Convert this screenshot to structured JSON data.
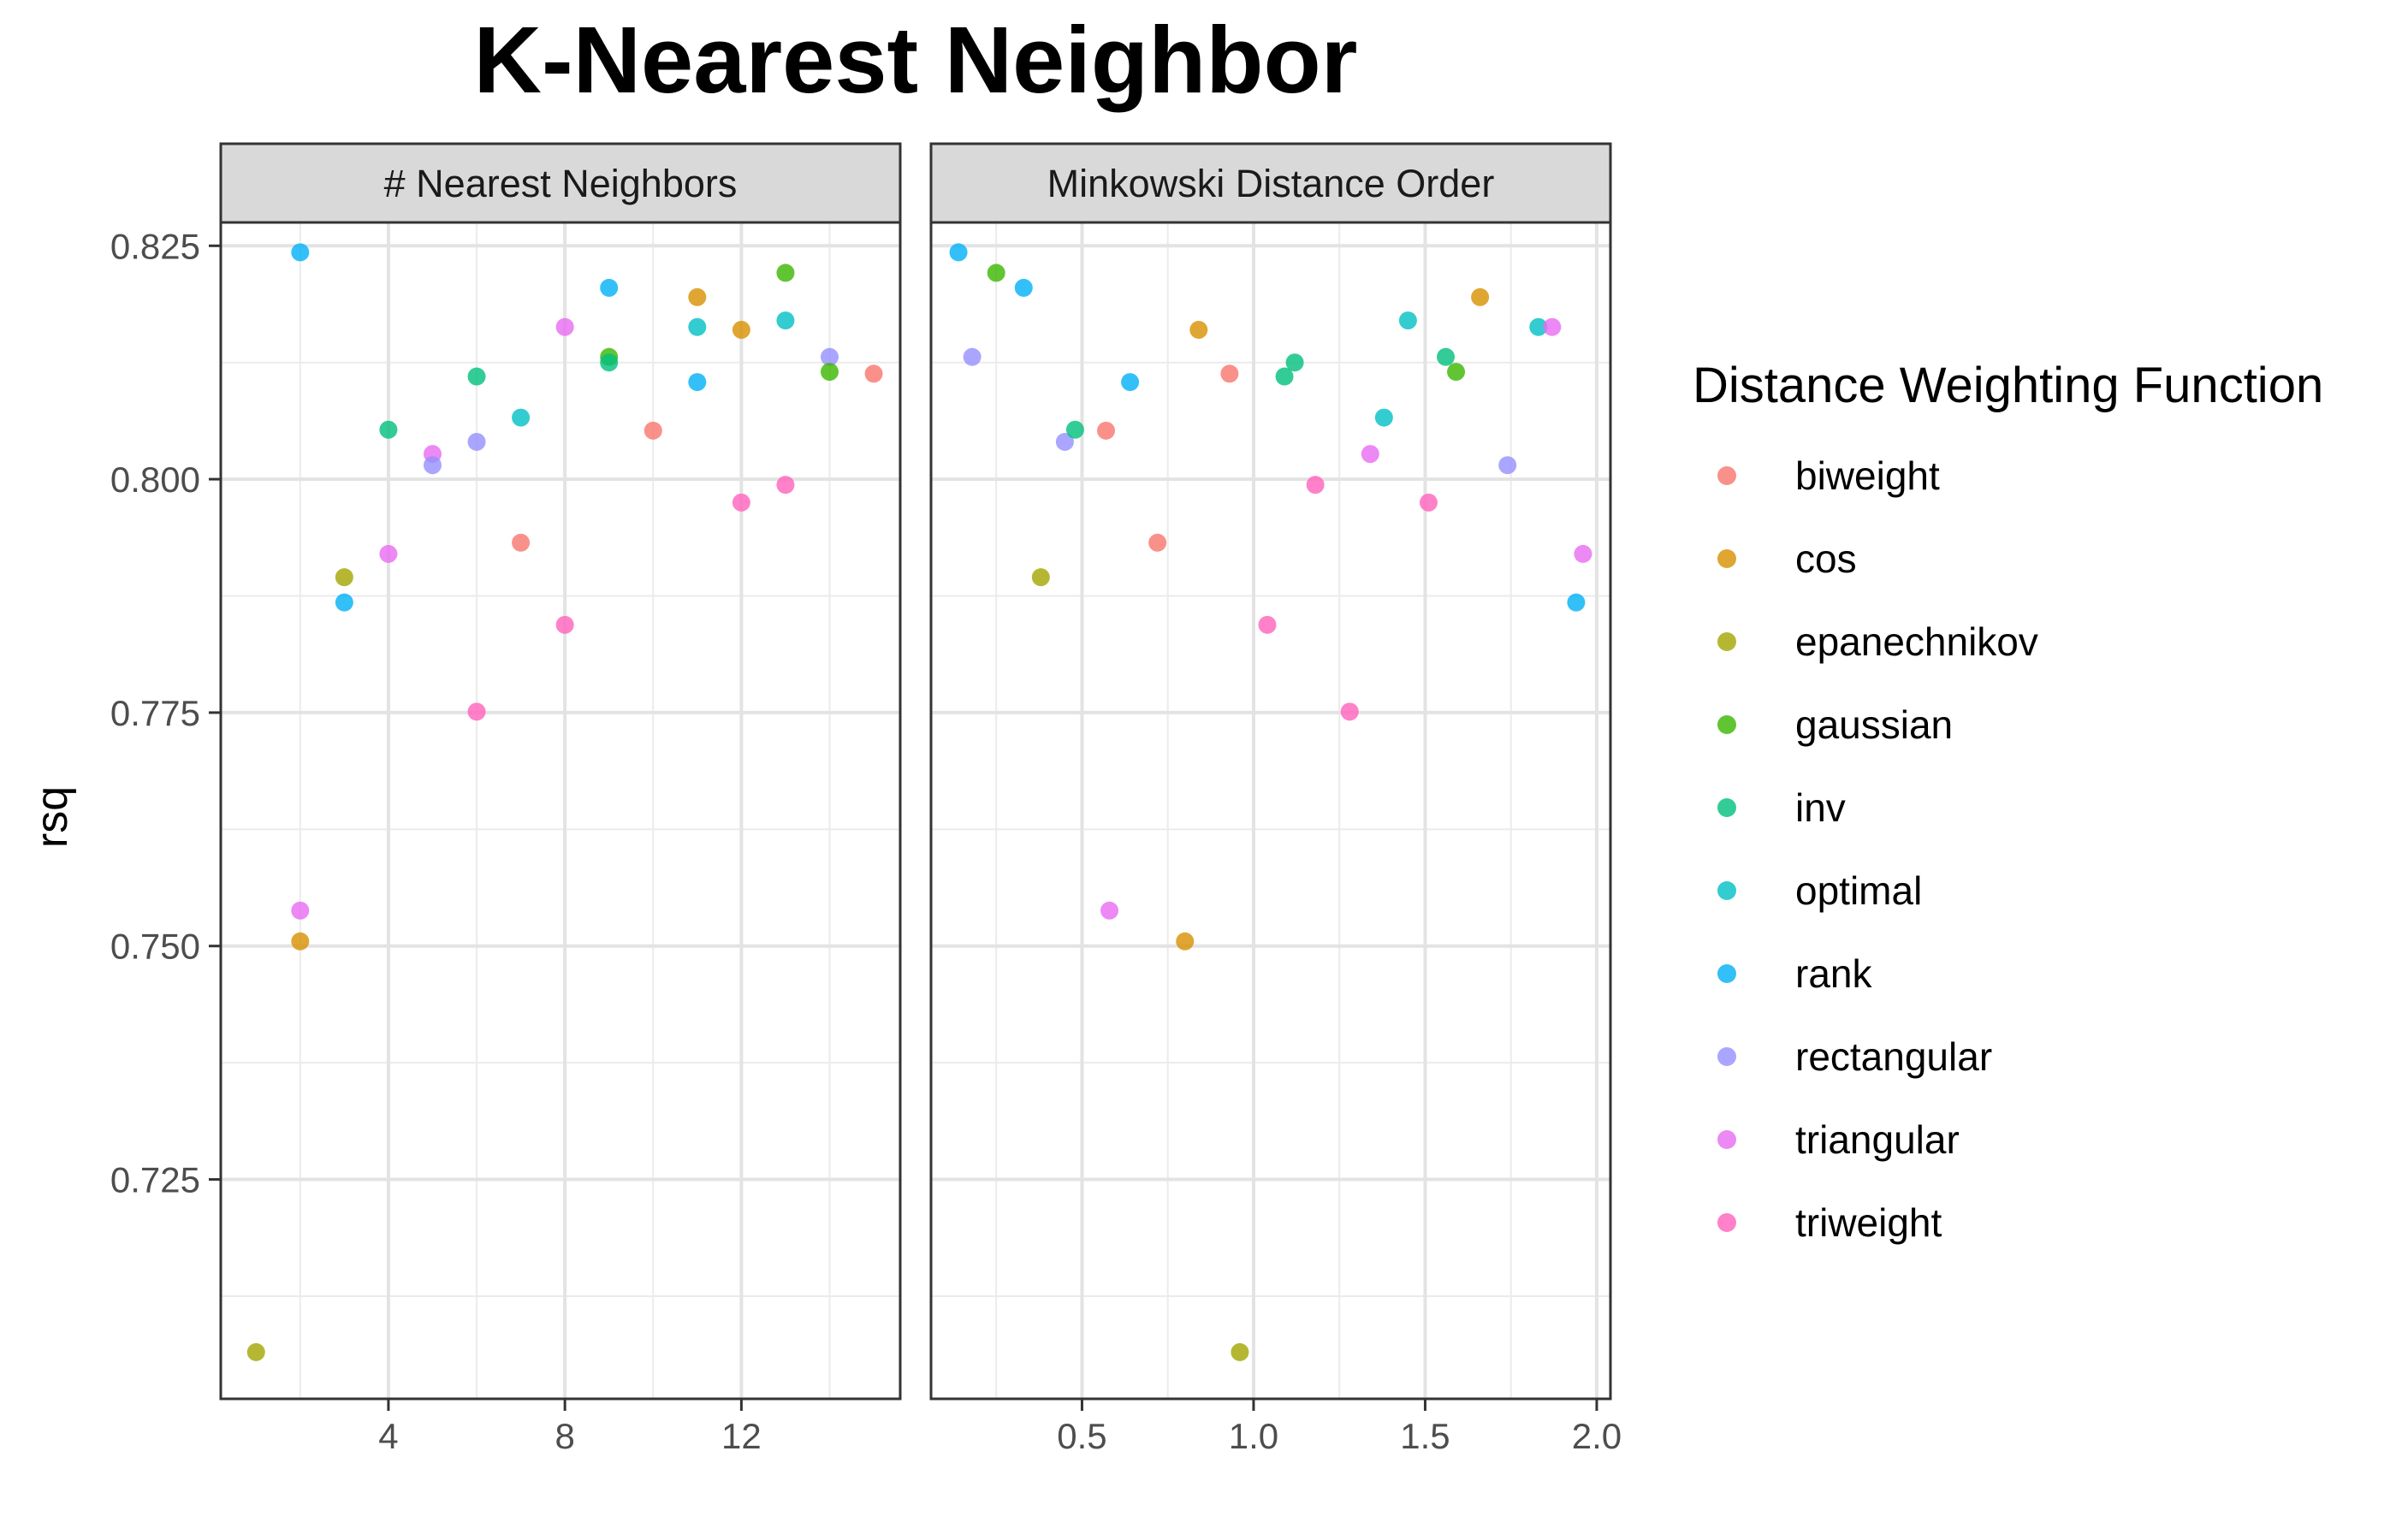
{
  "chart_data": {
    "type": "scatter",
    "title": "K-Nearest Neighbor",
    "ylabel": "rsq",
    "ylim": [
      0.7015,
      0.8275
    ],
    "yticks": [
      0.725,
      0.75,
      0.775,
      0.8,
      0.825
    ],
    "ytick_labels": [
      "0.725",
      "0.750",
      "0.775",
      "0.800",
      "0.825"
    ],
    "grid": true,
    "legend": {
      "title": "Distance Weighting Function",
      "position": "right",
      "entries": [
        "biweight",
        "cos",
        "epanechnikov",
        "gaussian",
        "inv",
        "optimal",
        "rank",
        "rectangular",
        "triangular",
        "triweight"
      ]
    },
    "colors": {
      "biweight": "#F8766D",
      "cos": "#D89000",
      "epanechnikov": "#A3A500",
      "gaussian": "#39B600",
      "inv": "#00BF7D",
      "optimal": "#00BFC4",
      "rank": "#00B0F6",
      "rectangular": "#9590FF",
      "triangular": "#E76BF3",
      "triweight": "#FF62BC"
    },
    "facets": [
      {
        "strip": "# Nearest Neighbors",
        "xlim": [
          0.2,
          15.6
        ],
        "xticks": [
          4,
          8,
          12
        ],
        "xtick_labels": [
          "4",
          "8",
          "12"
        ],
        "points": [
          {
            "x": 2,
            "y": 0.8243,
            "g": "rank"
          },
          {
            "x": 1,
            "y": 0.7065,
            "g": "epanechnikov"
          },
          {
            "x": 2,
            "y": 0.7538,
            "g": "triangular"
          },
          {
            "x": 2,
            "y": 0.7505,
            "g": "cos"
          },
          {
            "x": 3,
            "y": 0.7895,
            "g": "epanechnikov"
          },
          {
            "x": 3,
            "y": 0.7868,
            "g": "rank"
          },
          {
            "x": 4,
            "y": 0.8053,
            "g": "inv"
          },
          {
            "x": 4,
            "y": 0.792,
            "g": "triangular"
          },
          {
            "x": 5,
            "y": 0.8027,
            "g": "triangular"
          },
          {
            "x": 5,
            "y": 0.8015,
            "g": "rectangular"
          },
          {
            "x": 6,
            "y": 0.811,
            "g": "inv"
          },
          {
            "x": 6,
            "y": 0.804,
            "g": "rectangular"
          },
          {
            "x": 6,
            "y": 0.7751,
            "g": "triweight"
          },
          {
            "x": 7,
            "y": 0.8066,
            "g": "optimal"
          },
          {
            "x": 7,
            "y": 0.7932,
            "g": "biweight"
          },
          {
            "x": 8,
            "y": 0.8163,
            "g": "triangular"
          },
          {
            "x": 8,
            "y": 0.7844,
            "g": "triweight"
          },
          {
            "x": 9,
            "y": 0.8205,
            "g": "rank"
          },
          {
            "x": 9,
            "y": 0.8131,
            "g": "gaussian"
          },
          {
            "x": 9,
            "y": 0.8125,
            "g": "inv"
          },
          {
            "x": 10,
            "y": 0.8052,
            "g": "biweight"
          },
          {
            "x": 11,
            "y": 0.8195,
            "g": "cos"
          },
          {
            "x": 11,
            "y": 0.8163,
            "g": "optimal"
          },
          {
            "x": 11,
            "y": 0.8104,
            "g": "rank"
          },
          {
            "x": 12,
            "y": 0.816,
            "g": "cos"
          },
          {
            "x": 12,
            "y": 0.7975,
            "g": "triweight"
          },
          {
            "x": 13,
            "y": 0.8221,
            "g": "gaussian"
          },
          {
            "x": 13,
            "y": 0.817,
            "g": "optimal"
          },
          {
            "x": 13,
            "y": 0.7994,
            "g": "triweight"
          },
          {
            "x": 14,
            "y": 0.8131,
            "g": "rectangular"
          },
          {
            "x": 14,
            "y": 0.8115,
            "g": "gaussian"
          },
          {
            "x": 15,
            "y": 0.8113,
            "g": "biweight"
          }
        ]
      },
      {
        "strip": "Minkowski Distance Order",
        "xlim": [
          0.06,
          2.04
        ],
        "xticks": [
          0.5,
          1.0,
          1.5,
          2.0
        ],
        "xtick_labels": [
          "0.5",
          "1.0",
          "1.5",
          "2.0"
        ],
        "points": [
          {
            "x": 0.14,
            "y": 0.8243,
            "g": "rank"
          },
          {
            "x": 0.25,
            "y": 0.8221,
            "g": "gaussian"
          },
          {
            "x": 0.33,
            "y": 0.8205,
            "g": "rank"
          },
          {
            "x": 0.18,
            "y": 0.8131,
            "g": "rectangular"
          },
          {
            "x": 0.38,
            "y": 0.7895,
            "g": "epanechnikov"
          },
          {
            "x": 0.45,
            "y": 0.804,
            "g": "rectangular"
          },
          {
            "x": 0.48,
            "y": 0.8053,
            "g": "inv"
          },
          {
            "x": 0.57,
            "y": 0.8052,
            "g": "biweight"
          },
          {
            "x": 0.58,
            "y": 0.7538,
            "g": "triangular"
          },
          {
            "x": 0.64,
            "y": 0.8104,
            "g": "rank"
          },
          {
            "x": 0.72,
            "y": 0.7932,
            "g": "biweight"
          },
          {
            "x": 0.8,
            "y": 0.7505,
            "g": "cos"
          },
          {
            "x": 0.84,
            "y": 0.816,
            "g": "cos"
          },
          {
            "x": 0.93,
            "y": 0.8113,
            "g": "biweight"
          },
          {
            "x": 0.96,
            "y": 0.7065,
            "g": "epanechnikov"
          },
          {
            "x": 1.04,
            "y": 0.7844,
            "g": "triweight"
          },
          {
            "x": 1.09,
            "y": 0.811,
            "g": "inv"
          },
          {
            "x": 1.12,
            "y": 0.8125,
            "g": "inv"
          },
          {
            "x": 1.18,
            "y": 0.7994,
            "g": "triweight"
          },
          {
            "x": 1.28,
            "y": 0.7751,
            "g": "triweight"
          },
          {
            "x": 1.34,
            "y": 0.8027,
            "g": "triangular"
          },
          {
            "x": 1.38,
            "y": 0.8066,
            "g": "optimal"
          },
          {
            "x": 1.45,
            "y": 0.817,
            "g": "optimal"
          },
          {
            "x": 1.51,
            "y": 0.7975,
            "g": "triweight"
          },
          {
            "x": 1.56,
            "y": 0.8131,
            "g": "inv"
          },
          {
            "x": 1.59,
            "y": 0.8115,
            "g": "gaussian"
          },
          {
            "x": 1.66,
            "y": 0.8195,
            "g": "cos"
          },
          {
            "x": 1.74,
            "y": 0.8015,
            "g": "rectangular"
          },
          {
            "x": 1.83,
            "y": 0.8163,
            "g": "optimal"
          },
          {
            "x": 1.87,
            "y": 0.8163,
            "g": "triangular"
          },
          {
            "x": 1.94,
            "y": 0.7868,
            "g": "rank"
          },
          {
            "x": 1.96,
            "y": 0.792,
            "g": "triangular"
          }
        ]
      }
    ]
  }
}
